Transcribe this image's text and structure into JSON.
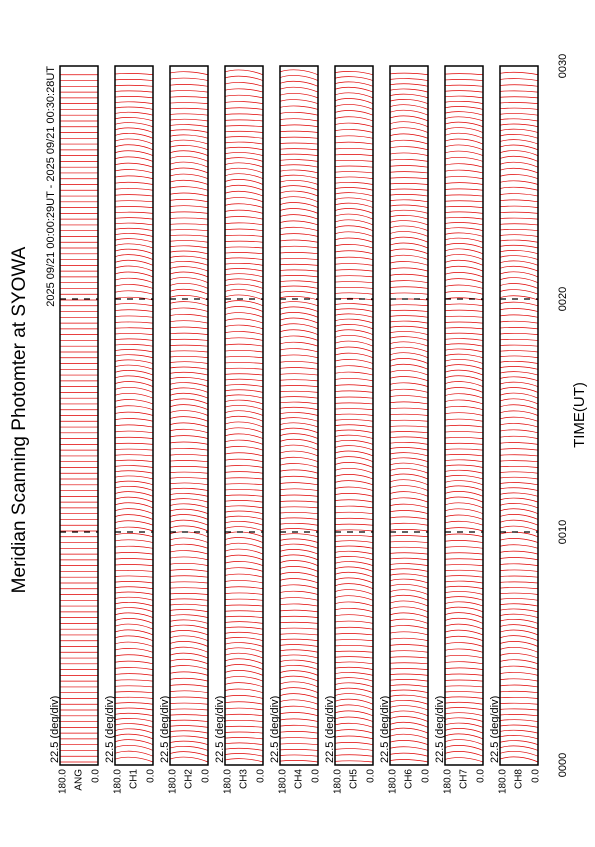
{
  "title": "Meridian Scanning Photomter at SYOWA",
  "subtitle": "2025 09/21 00:00:29UT - 2025 09/21 00:30:28UT",
  "x_axis": {
    "label": "TIME(UT)",
    "ticks": [
      "0000",
      "0010",
      "0020",
      "0030"
    ]
  },
  "panels": [
    {
      "scale": "22.5 (deg/div)",
      "top_label": "180.0",
      "bottom_label": "0.0",
      "channel": "ANG"
    },
    {
      "scale": "22.5 (deg/div)",
      "top_label": "180.0",
      "bottom_label": "0.0",
      "channel": "CH1"
    },
    {
      "scale": "22.5 (deg/div)",
      "top_label": "180.0",
      "bottom_label": "0.0",
      "channel": "CH2"
    },
    {
      "scale": "22.5 (deg/div)",
      "top_label": "180.0",
      "bottom_label": "0.0",
      "channel": "CH3"
    },
    {
      "scale": "22.5 (deg/div)",
      "top_label": "180.0",
      "bottom_label": "0.0",
      "channel": "CH4"
    },
    {
      "scale": "22.5 (deg/div)",
      "top_label": "180.0",
      "bottom_label": "0.0",
      "channel": "CH5"
    },
    {
      "scale": "22.5 (deg/div)",
      "top_label": "180.0",
      "bottom_label": "0.0",
      "channel": "CH6"
    },
    {
      "scale": "22.5 (deg/div)",
      "top_label": "180.0",
      "bottom_label": "0.0",
      "channel": "CH7"
    },
    {
      "scale": "22.5 (deg/div)",
      "top_label": "180.0",
      "bottom_label": "0.0",
      "channel": "CH8"
    }
  ]
}
